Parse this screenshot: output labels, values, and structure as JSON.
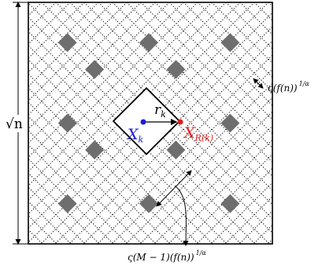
{
  "labels": {
    "side_length": "√n",
    "radius": "r",
    "radius_sub": "k",
    "node": "X",
    "node_sub": "k",
    "neighbor": "X",
    "neighbor_sub": "R(k)",
    "cell_spacing": "ς(f(n))",
    "cell_spacing_exp": "1/α",
    "block_spacing": "ς(M − 1)(f(n))",
    "block_spacing_exp": "1/α"
  },
  "colors": {
    "frame": "#000000",
    "grid": "#000000",
    "shaded_cell": "#6e6e6e",
    "node": "#1a1adb",
    "neighbor": "#e11b1b",
    "background": "#ffffff"
  },
  "grid": {
    "columns": 9,
    "rows": 9,
    "shaded_cells": [
      [
        1,
        1
      ],
      [
        4,
        1
      ],
      [
        7,
        1
      ],
      [
        1,
        4
      ],
      [
        4,
        4
      ],
      [
        7,
        4
      ],
      [
        1,
        7
      ],
      [
        4,
        7
      ],
      [
        7,
        7
      ],
      [
        2,
        2
      ],
      [
        5,
        2
      ],
      [
        2,
        5
      ],
      [
        5,
        5
      ]
    ]
  }
}
